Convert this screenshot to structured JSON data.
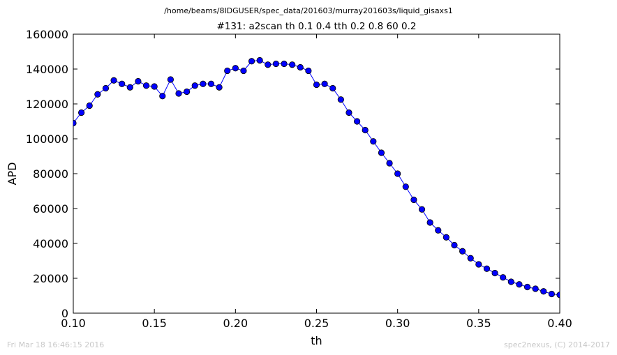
{
  "header": {
    "suptitle": "/home/beams/8IDGUSER/spec_data/201603/murray201603s/liquid_gisaxs1",
    "plot_title": "#131: a2scan  th 0.1 0.4  tth 0.2 0.8  60 0.2"
  },
  "footer": {
    "timestamp": "Fri Mar 18 16:46:15 2016",
    "credit": "spec2nexus, (C) 2014-2017"
  },
  "colors": {
    "series": "#0000ff",
    "axes": "#000000",
    "footer_text": "#c8c8c8"
  },
  "chart_data": {
    "type": "line",
    "title": "#131: a2scan  th 0.1 0.4  tth 0.2 0.8  60 0.2",
    "xlabel": "th",
    "ylabel": "APD",
    "xlim": [
      0.1,
      0.4
    ],
    "ylim": [
      0,
      160000
    ],
    "xticks": [
      "0.10",
      "0.15",
      "0.20",
      "0.25",
      "0.30",
      "0.35",
      "0.40"
    ],
    "yticks": [
      "0",
      "20000",
      "40000",
      "60000",
      "80000",
      "100000",
      "120000",
      "140000",
      "160000"
    ],
    "grid": false,
    "marker": "circle",
    "x": [
      0.1,
      0.105,
      0.11,
      0.115,
      0.12,
      0.125,
      0.13,
      0.135,
      0.14,
      0.145,
      0.15,
      0.155,
      0.16,
      0.165,
      0.17,
      0.175,
      0.18,
      0.185,
      0.19,
      0.195,
      0.2,
      0.205,
      0.21,
      0.215,
      0.22,
      0.225,
      0.23,
      0.235,
      0.24,
      0.245,
      0.25,
      0.255,
      0.26,
      0.265,
      0.27,
      0.275,
      0.28,
      0.285,
      0.29,
      0.295,
      0.3,
      0.305,
      0.31,
      0.315,
      0.32,
      0.325,
      0.33,
      0.335,
      0.34,
      0.345,
      0.35,
      0.355,
      0.36,
      0.365,
      0.37,
      0.375,
      0.38,
      0.385,
      0.39,
      0.395,
      0.4
    ],
    "y": [
      109000,
      115000,
      119000,
      125500,
      129000,
      133500,
      131500,
      129500,
      133000,
      130500,
      130000,
      124500,
      134000,
      126000,
      127000,
      130500,
      131500,
      131500,
      129500,
      139000,
      140500,
      139000,
      144500,
      145000,
      142500,
      143000,
      143000,
      142500,
      141000,
      139000,
      131000,
      131500,
      129000,
      122500,
      115000,
      110000,
      105000,
      98500,
      92000,
      86000,
      80000,
      72500,
      65000,
      59500,
      52000,
      47500,
      43500,
      39000,
      35500,
      31500,
      28000,
      25500,
      23000,
      20500,
      18000,
      16500,
      15000,
      14000,
      12500,
      11000,
      10500
    ]
  }
}
